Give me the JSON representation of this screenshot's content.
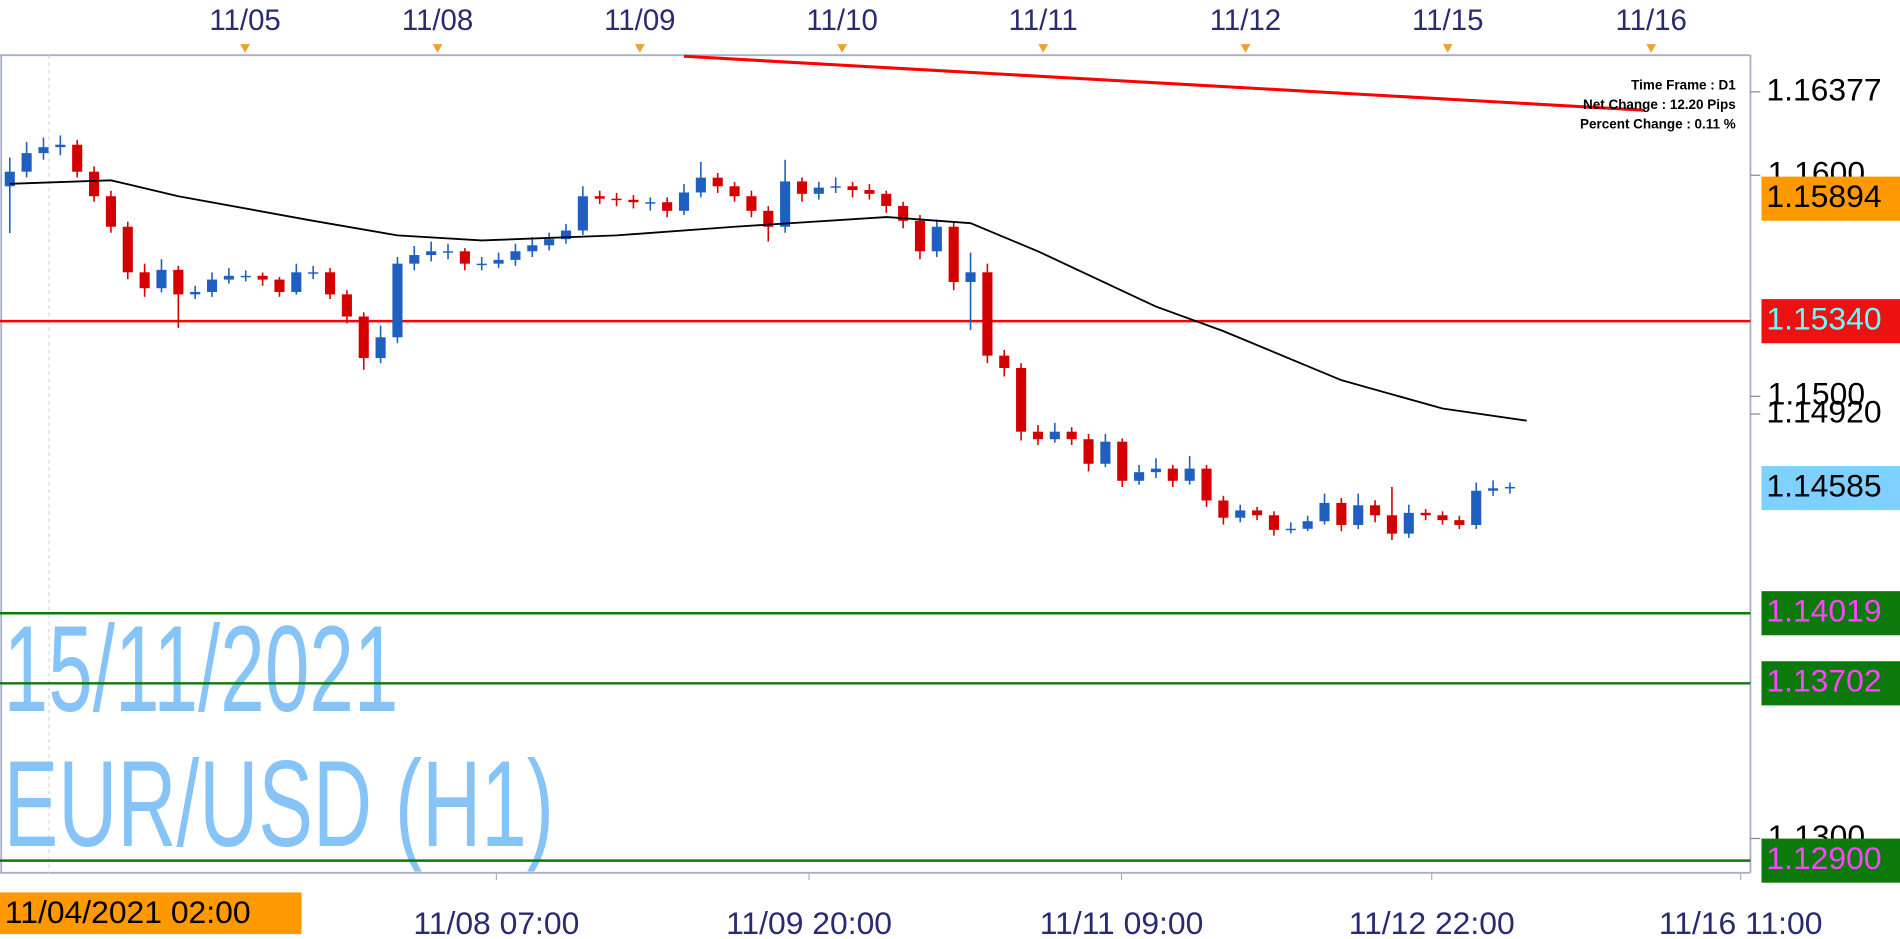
{
  "chart_data": {
    "type": "candlestick",
    "watermark_date": "15/11/2021",
    "watermark_symbol": "EUR/USD (H1)",
    "cursor_label": "11/04/2021 02:00",
    "info": [
      "Time Frame : D1",
      "Net Change : 12.20 Pips",
      "Percent Change : 0.11 %"
    ],
    "up_color": "#1f5fbf",
    "down_color": "#d40000",
    "xlim": [
      -0.58,
      103.27
    ],
    "ylim": [
      1.12845,
      1.16543
    ],
    "top_xticks": [
      {
        "value": 13.96,
        "label": "11/05"
      },
      {
        "value": 25.38,
        "label": "11/08"
      },
      {
        "value": 37.38,
        "label": "11/09"
      },
      {
        "value": 49.38,
        "label": "11/10"
      },
      {
        "value": 61.31,
        "label": "11/11"
      },
      {
        "value": 73.31,
        "label": "11/12"
      },
      {
        "value": 85.31,
        "label": "11/15"
      },
      {
        "value": 97.38,
        "label": "11/16"
      }
    ],
    "xticks": [
      {
        "value": 28.87,
        "label": "11/08 07:00"
      },
      {
        "value": 47.42,
        "label": "11/09 20:00"
      },
      {
        "value": 65.96,
        "label": "11/11 09:00"
      },
      {
        "value": 84.36,
        "label": "11/12 22:00"
      },
      {
        "value": 102.69,
        "label": "11/16 11:00"
      }
    ],
    "yticks": [
      {
        "value": 1.16,
        "label": "1.1600"
      },
      {
        "value": 1.15,
        "label": "1.1500"
      },
      {
        "value": 1.13,
        "label": "1.1300"
      }
    ],
    "price_labels": [
      {
        "value": 1.16377,
        "label": "1.16377",
        "bg": null,
        "color": "#000000",
        "line": null
      },
      {
        "value": 1.15894,
        "label": "1.15894",
        "bg": "#ff9900",
        "color": "#000000",
        "line": null
      },
      {
        "value": 1.1534,
        "label": "1.15340",
        "bg": "#ee1111",
        "color": "#66ffff",
        "line": "#ff0000"
      },
      {
        "value": 1.1492,
        "label": "1.14920",
        "bg": null,
        "color": "#000000",
        "line": null
      },
      {
        "value": 1.14585,
        "label": "1.14585",
        "bg": "#7fcfff",
        "color": "#000000",
        "line": null
      },
      {
        "value": 1.14019,
        "label": "1.14019",
        "bg": "#0b7a0b",
        "color": "#ff44ff",
        "line": "#0b7a0b"
      },
      {
        "value": 1.13702,
        "label": "1.13702",
        "bg": "#0b7a0b",
        "color": "#ff44ff",
        "line": "#0b7a0b"
      },
      {
        "value": 1.129,
        "label": "1.12900",
        "bg": "#0b7a0b",
        "color": "#ff44ff",
        "line": "#0b7a0b"
      }
    ],
    "ma": {
      "color": "#000000",
      "x": [
        0,
        6,
        10,
        18,
        23,
        28,
        36,
        43,
        52,
        57,
        61,
        68,
        72,
        79,
        85,
        90
      ],
      "values": [
        1.15961,
        1.15977,
        1.15905,
        1.15794,
        1.15728,
        1.15705,
        1.15728,
        1.15767,
        1.15811,
        1.15783,
        1.15656,
        1.15406,
        1.15295,
        1.15073,
        1.14945,
        1.1489
      ]
    },
    "trendline": {
      "color": "#ff0000",
      "x": [
        40,
        97
      ],
      "values": [
        1.16538,
        1.16294
      ]
    },
    "candles": [
      [
        1.1595,
        1.1608,
        1.15739,
        1.16016
      ],
      [
        1.16016,
        1.1615,
        1.1599,
        1.161
      ],
      [
        1.161,
        1.1617,
        1.1607,
        1.16127
      ],
      [
        1.16127,
        1.1618,
        1.1609,
        1.16138
      ],
      [
        1.16138,
        1.1616,
        1.1599,
        1.16016
      ],
      [
        1.16016,
        1.1604,
        1.1588,
        1.15905
      ],
      [
        1.15905,
        1.1593,
        1.1574,
        1.15767
      ],
      [
        1.15767,
        1.1579,
        1.1553,
        1.15561
      ],
      [
        1.15561,
        1.156,
        1.1545,
        1.15489
      ],
      [
        1.15489,
        1.1562,
        1.1547,
        1.15572
      ],
      [
        1.15572,
        1.1559,
        1.1531,
        1.15461
      ],
      [
        1.15461,
        1.155,
        1.1544,
        1.15472
      ],
      [
        1.15472,
        1.1556,
        1.1545,
        1.15528
      ],
      [
        1.15528,
        1.1558,
        1.1551,
        1.15545
      ],
      [
        1.15545,
        1.1557,
        1.1552,
        1.15545
      ],
      [
        1.15545,
        1.1556,
        1.155,
        1.15528
      ],
      [
        1.15528,
        1.1554,
        1.1545,
        1.15472
      ],
      [
        1.15472,
        1.156,
        1.1546,
        1.15561
      ],
      [
        1.15561,
        1.1559,
        1.1553,
        1.15561
      ],
      [
        1.15561,
        1.1558,
        1.1544,
        1.15461
      ],
      [
        1.15461,
        1.1548,
        1.1533,
        1.15361
      ],
      [
        1.15361,
        1.1538,
        1.1512,
        1.15173
      ],
      [
        1.15173,
        1.1532,
        1.1515,
        1.15267
      ],
      [
        1.15267,
        1.1563,
        1.1524,
        1.156
      ],
      [
        1.156,
        1.1568,
        1.1557,
        1.15639
      ],
      [
        1.15639,
        1.157,
        1.1561,
        1.15656
      ],
      [
        1.15656,
        1.1569,
        1.1562,
        1.15656
      ],
      [
        1.15656,
        1.1567,
        1.1557,
        1.156
      ],
      [
        1.156,
        1.1563,
        1.1557,
        1.156
      ],
      [
        1.156,
        1.1565,
        1.1558,
        1.15617
      ],
      [
        1.15617,
        1.1569,
        1.1559,
        1.15656
      ],
      [
        1.15656,
        1.1572,
        1.1563,
        1.15683
      ],
      [
        1.15683,
        1.1574,
        1.1566,
        1.15711
      ],
      [
        1.15711,
        1.1578,
        1.1569,
        1.1575
      ],
      [
        1.1575,
        1.1595,
        1.1573,
        1.15905
      ],
      [
        1.15905,
        1.1593,
        1.1587,
        1.15894
      ],
      [
        1.15894,
        1.1592,
        1.1586,
        1.15889
      ],
      [
        1.15889,
        1.1591,
        1.1585,
        1.15878
      ],
      [
        1.15878,
        1.159,
        1.1584,
        1.15878
      ],
      [
        1.15878,
        1.159,
        1.1581,
        1.15839
      ],
      [
        1.15839,
        1.1596,
        1.1582,
        1.15922
      ],
      [
        1.15922,
        1.1606,
        1.159,
        1.15989
      ],
      [
        1.15989,
        1.1601,
        1.1592,
        1.1595
      ],
      [
        1.1595,
        1.1597,
        1.1588,
        1.15905
      ],
      [
        1.15905,
        1.1593,
        1.1581,
        1.15839
      ],
      [
        1.15839,
        1.1586,
        1.157,
        1.15767
      ],
      [
        1.15767,
        1.1607,
        1.1574,
        1.15972
      ],
      [
        1.15972,
        1.1599,
        1.1588,
        1.15916
      ],
      [
        1.15916,
        1.1597,
        1.1589,
        1.15944
      ],
      [
        1.15944,
        1.1599,
        1.1592,
        1.1595
      ],
      [
        1.1595,
        1.1597,
        1.159,
        1.15933
      ],
      [
        1.15933,
        1.1596,
        1.1589,
        1.15916
      ],
      [
        1.15916,
        1.1593,
        1.1583,
        1.15861
      ],
      [
        1.15861,
        1.1588,
        1.1576,
        1.15794
      ],
      [
        1.15794,
        1.1582,
        1.1562,
        1.15656
      ],
      [
        1.15656,
        1.158,
        1.1563,
        1.15767
      ],
      [
        1.15767,
        1.1579,
        1.1548,
        1.15517
      ],
      [
        1.15517,
        1.1565,
        1.153,
        1.15561
      ],
      [
        1.15561,
        1.156,
        1.1515,
        1.15184
      ],
      [
        1.15184,
        1.1521,
        1.1509,
        1.15128
      ],
      [
        1.15128,
        1.1515,
        1.148,
        1.1484
      ],
      [
        1.1484,
        1.1487,
        1.1478,
        1.14806
      ],
      [
        1.14806,
        1.1488,
        1.1479,
        1.1484
      ],
      [
        1.1484,
        1.1486,
        1.1478,
        1.14806
      ],
      [
        1.14806,
        1.1483,
        1.1466,
        1.14695
      ],
      [
        1.14695,
        1.1483,
        1.1468,
        1.14795
      ],
      [
        1.14795,
        1.1481,
        1.1459,
        1.14618
      ],
      [
        1.14618,
        1.1469,
        1.146,
        1.14657
      ],
      [
        1.14657,
        1.1472,
        1.1463,
        1.14673
      ],
      [
        1.14673,
        1.1469,
        1.1459,
        1.14618
      ],
      [
        1.14618,
        1.1473,
        1.146,
        1.14673
      ],
      [
        1.14673,
        1.1469,
        1.145,
        1.14529
      ],
      [
        1.14529,
        1.1455,
        1.1442,
        1.14451
      ],
      [
        1.14451,
        1.1451,
        1.1443,
        1.14484
      ],
      [
        1.14484,
        1.145,
        1.1444,
        1.14462
      ],
      [
        1.14462,
        1.1448,
        1.1437,
        1.14396
      ],
      [
        1.14396,
        1.1443,
        1.1438,
        1.14401
      ],
      [
        1.14401,
        1.1446,
        1.1439,
        1.14435
      ],
      [
        1.14435,
        1.1456,
        1.1442,
        1.14518
      ],
      [
        1.14518,
        1.1454,
        1.1439,
        1.14418
      ],
      [
        1.14418,
        1.1456,
        1.144,
        1.14507
      ],
      [
        1.14507,
        1.1453,
        1.1443,
        1.14462
      ],
      [
        1.14462,
        1.1459,
        1.1435,
        1.14379
      ],
      [
        1.14379,
        1.1451,
        1.1436,
        1.14473
      ],
      [
        1.14473,
        1.1449,
        1.1444,
        1.14462
      ],
      [
        1.14462,
        1.1448,
        1.1442,
        1.1444
      ],
      [
        1.1444,
        1.1446,
        1.144,
        1.14418
      ],
      [
        1.14418,
        1.1461,
        1.144,
        1.14573
      ],
      [
        1.14573,
        1.1462,
        1.1455,
        1.14584
      ],
      [
        1.14584,
        1.1461,
        1.1456,
        1.1459
      ]
    ]
  }
}
